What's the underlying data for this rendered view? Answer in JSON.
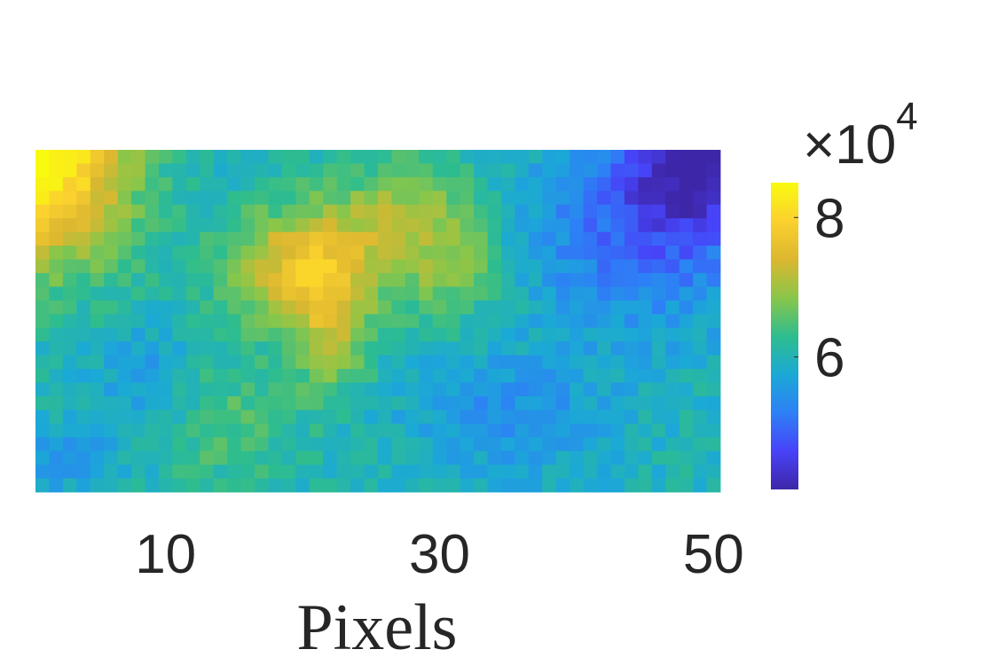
{
  "chart_data": {
    "type": "heatmap",
    "title": "",
    "xlabel": "Pixels",
    "ylabel": "",
    "xlim": [
      0.5,
      50.5
    ],
    "x_ticks": [
      10,
      30,
      50
    ],
    "x_tick_labels": [
      "10",
      "30",
      "50"
    ],
    "n_cols": 50,
    "n_rows": 25,
    "grid": false,
    "legend": "none",
    "colormap": "parula",
    "colorbar": {
      "placement": "right",
      "clim": [
        41000,
        85000
      ],
      "ticks": [
        60000,
        80000
      ],
      "tick_labels": [
        "6",
        "8"
      ],
      "exponent_label": "×10",
      "exponent_power": "4"
    },
    "value_description": "Approximate intensity field read from the image (about 4.1e4 to 8.5e4): maxima at the top-left corner (~8.4e4) and in a central ridge around column 18-24, rows 7-16 (~7.8e4), minimum at the top-right corner (~4.2e4), mostly 5.5e4-6.5e4 elsewhere.",
    "value_model": {
      "base": 60000,
      "peaks": [
        {
          "col": 1,
          "row": 1,
          "amplitude": 25000,
          "sx": 4.5,
          "sy": 5.5
        },
        {
          "col": 20,
          "row": 9,
          "amplitude": 16000,
          "sx": 4,
          "sy": 2.8
        },
        {
          "col": 22,
          "row": 14,
          "amplitude": 10000,
          "sx": 2,
          "sy": 3
        },
        {
          "col": 27,
          "row": 5,
          "amplitude": 8000,
          "sx": 4,
          "sy": 3
        },
        {
          "col": 31,
          "row": 9,
          "amplitude": 7000,
          "sx": 3,
          "sy": 3
        },
        {
          "col": 14,
          "row": 20,
          "amplitude": 5000,
          "sx": 4,
          "sy": 4
        },
        {
          "col": 49,
          "row": 1,
          "amplitude": -18000,
          "sx": 4,
          "sy": 4
        },
        {
          "col": 44,
          "row": 7,
          "amplitude": -9000,
          "sx": 6,
          "sy": 5
        },
        {
          "col": 35,
          "row": 20,
          "amplitude": -6000,
          "sx": 5,
          "sy": 3
        },
        {
          "col": 9,
          "row": 17,
          "amplitude": -5000,
          "sx": 3,
          "sy": 3
        },
        {
          "col": 3,
          "row": 23,
          "amplitude": -4000,
          "sx": 3,
          "sy": 2
        }
      ],
      "noise_amplitude": 2500
    },
    "colors": {
      "text": "#262626",
      "colormap_stops": [
        "#3e26a8",
        "#4743f8",
        "#2d80f6",
        "#1ba9d6",
        "#2ebd8e",
        "#8ac649",
        "#dcb730",
        "#fbd12e",
        "#f9fb0e"
      ]
    }
  }
}
